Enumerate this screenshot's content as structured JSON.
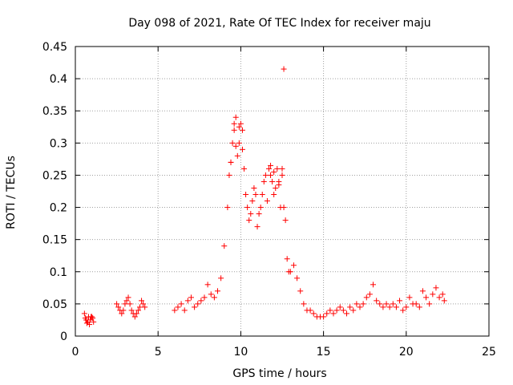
{
  "chart_data": {
    "type": "scatter",
    "title": "Day 098 of 2021, Rate Of TEC Index for receiver maju",
    "xlabel": "GPS time / hours",
    "ylabel": "ROTI / TECUs",
    "xlim": [
      0,
      25
    ],
    "ylim": [
      0,
      0.45
    ],
    "x_ticks": [
      0,
      5,
      10,
      15,
      20,
      25
    ],
    "x_tick_labels": [
      "0",
      "5",
      "10",
      "15",
      "20",
      "25"
    ],
    "y_ticks": [
      0,
      0.05,
      0.1,
      0.15,
      0.2,
      0.25,
      0.3,
      0.35,
      0.4,
      0.45
    ],
    "y_tick_labels": [
      "0",
      "0.05",
      "0.1",
      "0.15",
      "0.2",
      "0.25",
      "0.3",
      "0.35",
      "0.4",
      "0.45"
    ],
    "grid": true,
    "marker": "+",
    "marker_color": "#ff0000",
    "series": [
      {
        "name": "ROTI",
        "description_points": "approximate sampled envelope",
        "x": [
          0.55,
          0.6,
          0.65,
          0.7,
          0.75,
          0.8,
          0.85,
          0.9,
          0.95,
          1.0,
          1.05,
          1.1,
          2.5,
          2.6,
          2.7,
          2.8,
          2.9,
          3.0,
          3.1,
          3.2,
          3.3,
          3.4,
          3.5,
          3.6,
          3.7,
          3.8,
          3.9,
          4.0,
          4.1,
          4.2,
          6.0,
          6.2,
          6.4,
          6.6,
          6.8,
          7.0,
          7.2,
          7.4,
          7.6,
          7.8,
          8.0,
          8.2,
          8.4,
          8.6,
          8.8,
          9.0,
          9.2,
          9.3,
          9.4,
          9.5,
          9.6,
          9.7,
          9.8,
          9.9,
          10.0,
          10.1,
          10.2,
          10.3,
          10.4,
          10.5,
          10.6,
          10.7,
          10.8,
          10.9,
          11.0,
          11.1,
          11.2,
          11.3,
          11.4,
          11.5,
          11.6,
          11.7,
          11.8,
          11.9,
          12.0,
          12.1,
          12.2,
          12.3,
          12.4,
          12.5,
          12.6,
          12.7,
          12.8,
          12.9,
          13.0,
          13.2,
          13.4,
          13.6,
          13.8,
          14.0,
          14.2,
          14.4,
          14.6,
          14.8,
          15.0,
          15.2,
          15.4,
          15.6,
          15.8,
          16.0,
          16.2,
          16.4,
          16.6,
          16.8,
          17.0,
          17.2,
          17.4,
          17.6,
          17.8,
          18.0,
          18.2,
          18.4,
          18.6,
          18.8,
          19.0,
          19.2,
          19.4,
          19.6,
          19.8,
          20.0,
          20.2,
          20.4,
          20.6,
          20.8,
          21.0,
          21.2,
          21.4,
          21.6,
          21.8,
          22.0,
          22.2,
          22.3,
          12.6,
          9.6,
          9.9,
          9.7,
          9.4,
          10.1,
          11.8,
          12.0,
          12.3,
          12.5
        ],
        "y": [
          0.035,
          0.028,
          0.025,
          0.02,
          0.022,
          0.03,
          0.018,
          0.025,
          0.03,
          0.03,
          0.028,
          0.022,
          0.05,
          0.045,
          0.04,
          0.035,
          0.04,
          0.05,
          0.055,
          0.06,
          0.05,
          0.04,
          0.035,
          0.03,
          0.035,
          0.04,
          0.045,
          0.055,
          0.05,
          0.045,
          0.04,
          0.045,
          0.05,
          0.04,
          0.055,
          0.06,
          0.045,
          0.05,
          0.055,
          0.06,
          0.08,
          0.065,
          0.06,
          0.07,
          0.09,
          0.14,
          0.2,
          0.25,
          0.27,
          0.3,
          0.32,
          0.34,
          0.28,
          0.3,
          0.33,
          0.32,
          0.26,
          0.22,
          0.2,
          0.18,
          0.19,
          0.21,
          0.23,
          0.22,
          0.17,
          0.19,
          0.2,
          0.22,
          0.24,
          0.25,
          0.21,
          0.26,
          0.25,
          0.24,
          0.22,
          0.23,
          0.26,
          0.24,
          0.2,
          0.26,
          0.2,
          0.18,
          0.12,
          0.1,
          0.1,
          0.11,
          0.09,
          0.07,
          0.05,
          0.04,
          0.04,
          0.035,
          0.03,
          0.03,
          0.03,
          0.035,
          0.04,
          0.035,
          0.04,
          0.045,
          0.04,
          0.035,
          0.045,
          0.04,
          0.05,
          0.045,
          0.05,
          0.06,
          0.065,
          0.08,
          0.055,
          0.05,
          0.045,
          0.05,
          0.045,
          0.05,
          0.045,
          0.055,
          0.04,
          0.045,
          0.06,
          0.05,
          0.05,
          0.045,
          0.07,
          0.06,
          0.05,
          0.065,
          0.075,
          0.06,
          0.065,
          0.055,
          0.415,
          0.33,
          0.325,
          0.295,
          0.27,
          0.29,
          0.265,
          0.255,
          0.235,
          0.25
        ]
      }
    ]
  }
}
